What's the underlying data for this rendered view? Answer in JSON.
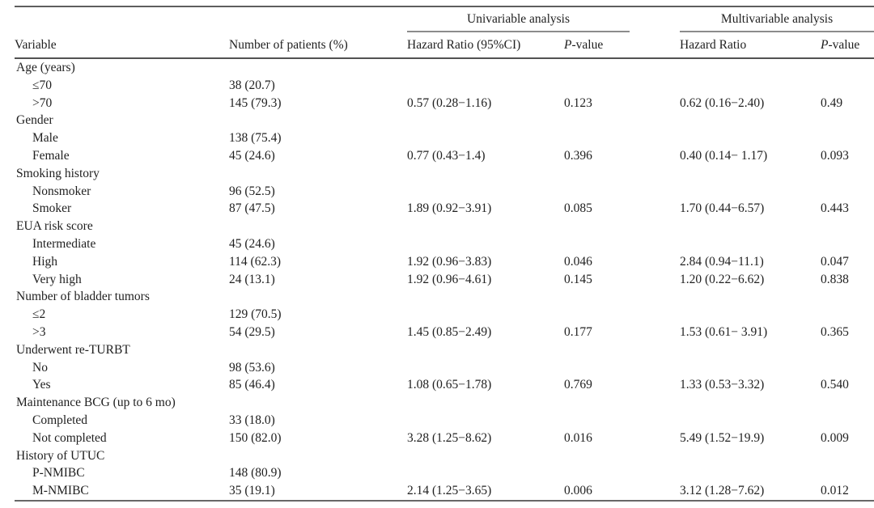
{
  "table": {
    "group_headers": {
      "univariable": "Univariable analysis",
      "multivariable": "Multivariable analysis"
    },
    "col_headers": {
      "variable": "Variable",
      "n_patients": "Number of patients (%)",
      "uni_hr": "Hazard Ratio (95%CI)",
      "uni_p": "P-value",
      "multi_hr": "Hazard Ratio",
      "multi_p": "P-value"
    },
    "rows": [
      {
        "label": "Age (years)",
        "indent": 0,
        "n": "",
        "uni_hr": "",
        "uni_p": "",
        "multi_hr": "",
        "multi_p": ""
      },
      {
        "label": "≤70",
        "indent": 1,
        "n": "38 (20.7)",
        "uni_hr": "",
        "uni_p": "",
        "multi_hr": "",
        "multi_p": ""
      },
      {
        "label": ">70",
        "indent": 1,
        "n": "145 (79.3)",
        "uni_hr": "0.57 (0.28−1.16)",
        "uni_p": "0.123",
        "multi_hr": "0.62 (0.16−2.40)",
        "multi_p": "0.49"
      },
      {
        "label": "Gender",
        "indent": 0,
        "n": "",
        "uni_hr": "",
        "uni_p": "",
        "multi_hr": "",
        "multi_p": ""
      },
      {
        "label": "Male",
        "indent": 1,
        "n": "138 (75.4)",
        "uni_hr": "",
        "uni_p": "",
        "multi_hr": "",
        "multi_p": ""
      },
      {
        "label": "Female",
        "indent": 1,
        "n": "45 (24.6)",
        "uni_hr": "0.77 (0.43−1.4)",
        "uni_p": "0.396",
        "multi_hr": "0.40 (0.14− 1.17)",
        "multi_p": "0.093"
      },
      {
        "label": "Smoking history",
        "indent": 0,
        "n": "",
        "uni_hr": "",
        "uni_p": "",
        "multi_hr": "",
        "multi_p": ""
      },
      {
        "label": "Nonsmoker",
        "indent": 1,
        "n": "96 (52.5)",
        "uni_hr": "",
        "uni_p": "",
        "multi_hr": "",
        "multi_p": ""
      },
      {
        "label": "Smoker",
        "indent": 1,
        "n": "87 (47.5)",
        "uni_hr": "1.89 (0.92−3.91)",
        "uni_p": "0.085",
        "multi_hr": "1.70 (0.44−6.57)",
        "multi_p": "0.443"
      },
      {
        "label": "EUA risk score",
        "indent": 0,
        "n": "",
        "uni_hr": "",
        "uni_p": "",
        "multi_hr": "",
        "multi_p": ""
      },
      {
        "label": "Intermediate",
        "indent": 1,
        "n": "45 (24.6)",
        "uni_hr": "",
        "uni_p": "",
        "multi_hr": "",
        "multi_p": ""
      },
      {
        "label": "High",
        "indent": 1,
        "n": "114 (62.3)",
        "uni_hr": "1.92 (0.96−3.83)",
        "uni_p": "0.046",
        "multi_hr": "2.84 (0.94−11.1)",
        "multi_p": "0.047"
      },
      {
        "label": "Very high",
        "indent": 1,
        "n": "24 (13.1)",
        "uni_hr": "1.92 (0.96−4.61)",
        "uni_p": "0.145",
        "multi_hr": "1.20 (0.22−6.62)",
        "multi_p": "0.838"
      },
      {
        "label": "Number of bladder tumors",
        "indent": 0,
        "n": "",
        "uni_hr": "",
        "uni_p": "",
        "multi_hr": "",
        "multi_p": ""
      },
      {
        "label": "≤2",
        "indent": 1,
        "n": "129 (70.5)",
        "uni_hr": "",
        "uni_p": "",
        "multi_hr": "",
        "multi_p": ""
      },
      {
        "label": ">3",
        "indent": 1,
        "n": "54 (29.5)",
        "uni_hr": "1.45 (0.85−2.49)",
        "uni_p": "0.177",
        "multi_hr": "1.53 (0.61− 3.91)",
        "multi_p": "0.365"
      },
      {
        "label": "Underwent re-TURBT",
        "indent": 0,
        "n": "",
        "uni_hr": "",
        "uni_p": "",
        "multi_hr": "",
        "multi_p": ""
      },
      {
        "label": "No",
        "indent": 1,
        "n": "98 (53.6)",
        "uni_hr": "",
        "uni_p": "",
        "multi_hr": "",
        "multi_p": ""
      },
      {
        "label": "Yes",
        "indent": 1,
        "n": "85 (46.4)",
        "uni_hr": "1.08 (0.65−1.78)",
        "uni_p": "0.769",
        "multi_hr": "1.33 (0.53−3.32)",
        "multi_p": "0.540"
      },
      {
        "label": "Maintenance BCG (up to 6 mo)",
        "indent": 0,
        "n": "",
        "uni_hr": "",
        "uni_p": "",
        "multi_hr": "",
        "multi_p": ""
      },
      {
        "label": "Completed",
        "indent": 1,
        "n": "33 (18.0)",
        "uni_hr": "",
        "uni_p": "",
        "multi_hr": "",
        "multi_p": ""
      },
      {
        "label": "Not completed",
        "indent": 1,
        "n": "150 (82.0)",
        "uni_hr": "3.28 (1.25−8.62)",
        "uni_p": "0.016",
        "multi_hr": "5.49 (1.52−19.9)",
        "multi_p": "0.009"
      },
      {
        "label": "History of UTUC",
        "indent": 0,
        "n": "",
        "uni_hr": "",
        "uni_p": "",
        "multi_hr": "",
        "multi_p": ""
      },
      {
        "label": "P-NMIBC",
        "indent": 1,
        "n": "148 (80.9)",
        "uni_hr": "",
        "uni_p": "",
        "multi_hr": "",
        "multi_p": ""
      },
      {
        "label": "M-NMIBC",
        "indent": 1,
        "n": "35 (19.1)",
        "uni_hr": "2.14 (1.25−3.65)",
        "uni_p": "0.006",
        "multi_hr": "3.12 (1.28−7.62)",
        "multi_p": "0.012"
      }
    ]
  },
  "colors": {
    "rule_heavy": "#5e5e5e",
    "rule_light": "#8c8c8c",
    "text": "#1f1f1f",
    "background": "#ffffff"
  }
}
